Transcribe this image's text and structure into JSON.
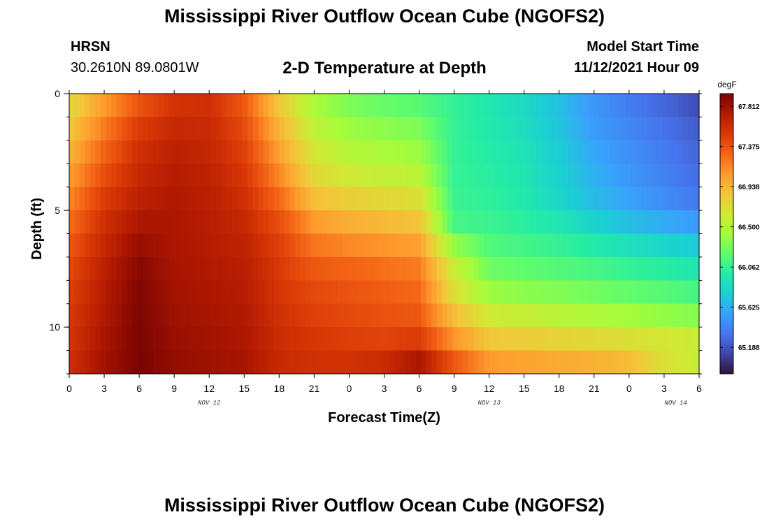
{
  "page": {
    "title": "Mississippi River Outflow Ocean Cube (NGOFS2)",
    "station": "HRSN",
    "coords": "30.2610N  89.0801W",
    "subtitle": "2-D Temperature at Depth",
    "model_start_label": "Model Start Time",
    "model_start_value": "11/12/2021 Hour 09",
    "bottom_title": "Mississippi River Outflow Ocean Cube (NGOFS2)"
  },
  "chart_data": {
    "type": "heatmap",
    "xlabel": "Forecast Time(Z)",
    "ylabel": "Depth (ft)",
    "x_range_hours": [
      0,
      54
    ],
    "y_range_ft": [
      0,
      12
    ],
    "y_inverted": true,
    "x_tick_labels": [
      "0",
      "3",
      "6",
      "9",
      "12",
      "15",
      "18",
      "21",
      "0",
      "3",
      "6",
      "9",
      "12",
      "15",
      "18",
      "21",
      "0",
      "3",
      "6"
    ],
    "y_tick_labels": [
      "0",
      "5",
      "10"
    ],
    "y_tick_values": [
      0,
      5,
      10
    ],
    "date_labels": [
      {
        "label": "NOV 12",
        "hour": 12
      },
      {
        "label": "NOV 13",
        "hour": 36
      },
      {
        "label": "NOV 14",
        "hour": 52
      }
    ],
    "colorbar": {
      "unit": "degF",
      "min": 64.9,
      "max": 67.95,
      "tick_labels": [
        "67.812",
        "67.375",
        "66.938",
        "66.500",
        "66.062",
        "65.625",
        "65.188"
      ],
      "tick_values": [
        67.812,
        67.375,
        66.938,
        66.5,
        66.062,
        65.625,
        65.188
      ]
    },
    "colormap": [
      "#30123b",
      "#4145ab",
      "#4675ed",
      "#39a2fc",
      "#1bcfd4",
      "#24eca6",
      "#61fc6c",
      "#a4fc3b",
      "#d1e834",
      "#f3c63a",
      "#fe9b2d",
      "#f36315",
      "#d93806",
      "#b11901",
      "#7a0402"
    ],
    "grid_depths_ft": [
      0,
      1,
      2,
      3,
      4,
      5,
      6,
      7,
      8,
      9,
      10,
      11,
      12
    ],
    "grid_hours": [
      0,
      3,
      6,
      9,
      12,
      15,
      18,
      21,
      24,
      27,
      30,
      33,
      36,
      39,
      42,
      45,
      48,
      51,
      54
    ],
    "values_degF": [
      [
        66.7,
        67.0,
        67.3,
        67.5,
        67.55,
        67.3,
        66.8,
        66.4,
        66.25,
        66.15,
        66.1,
        66.05,
        65.95,
        65.85,
        65.7,
        65.5,
        65.35,
        65.25,
        65.1
      ],
      [
        66.8,
        67.15,
        67.45,
        67.6,
        67.6,
        67.4,
        66.9,
        66.5,
        66.35,
        66.3,
        66.25,
        66.05,
        65.95,
        65.85,
        65.7,
        65.5,
        65.4,
        65.3,
        65.2
      ],
      [
        66.9,
        67.25,
        67.55,
        67.65,
        67.62,
        67.45,
        67.0,
        66.6,
        66.45,
        66.4,
        66.35,
        66.05,
        65.98,
        65.9,
        65.75,
        65.55,
        65.45,
        65.35,
        65.25
      ],
      [
        67.0,
        67.35,
        67.6,
        67.7,
        67.65,
        67.5,
        67.1,
        66.7,
        66.55,
        66.5,
        66.45,
        66.05,
        66.0,
        65.92,
        65.78,
        65.6,
        65.48,
        65.38,
        65.28
      ],
      [
        67.1,
        67.45,
        67.65,
        67.72,
        67.68,
        67.55,
        67.2,
        66.8,
        66.7,
        66.65,
        66.6,
        66.06,
        66.02,
        65.95,
        65.8,
        65.65,
        65.52,
        65.42,
        65.32
      ],
      [
        67.2,
        67.55,
        67.7,
        67.75,
        67.7,
        67.6,
        67.35,
        67.0,
        66.9,
        66.85,
        66.8,
        66.08,
        66.04,
        65.98,
        65.85,
        65.7,
        65.58,
        65.48,
        65.38
      ],
      [
        67.3,
        67.6,
        67.8,
        67.75,
        67.7,
        67.65,
        67.45,
        67.15,
        67.05,
        67.0,
        66.95,
        66.15,
        66.1,
        66.05,
        66.0,
        65.9,
        65.8,
        65.72,
        65.65
      ],
      [
        67.4,
        67.65,
        67.88,
        67.76,
        67.72,
        67.68,
        67.5,
        67.3,
        67.25,
        67.2,
        67.15,
        66.6,
        66.2,
        66.15,
        66.1,
        66.05,
        65.98,
        65.92,
        65.85
      ],
      [
        67.45,
        67.7,
        67.92,
        67.78,
        67.74,
        67.7,
        67.52,
        67.4,
        67.35,
        67.3,
        67.25,
        66.6,
        66.3,
        66.25,
        66.22,
        66.18,
        66.12,
        66.08,
        66.02
      ],
      [
        67.5,
        67.72,
        67.93,
        67.8,
        67.76,
        67.72,
        67.55,
        67.45,
        67.4,
        67.35,
        67.3,
        66.8,
        66.5,
        66.45,
        66.4,
        66.35,
        66.3,
        66.25,
        66.2
      ],
      [
        67.52,
        67.75,
        67.94,
        67.82,
        67.78,
        67.74,
        67.58,
        67.5,
        67.45,
        67.42,
        67.4,
        67.0,
        66.75,
        66.7,
        66.65,
        66.6,
        66.55,
        66.5,
        66.45
      ],
      [
        67.55,
        67.78,
        67.95,
        67.84,
        67.8,
        67.76,
        67.6,
        67.55,
        67.52,
        67.5,
        67.6,
        67.2,
        66.95,
        66.92,
        66.9,
        66.88,
        66.85,
        66.8,
        66.75
      ],
      [
        67.6,
        67.8,
        67.95,
        67.86,
        67.82,
        67.78,
        67.62,
        67.58,
        67.6,
        67.7,
        67.92,
        67.5,
        67.2,
        67.15,
        67.1,
        67.05,
        66.98,
        66.6,
        66.4
      ]
    ]
  }
}
